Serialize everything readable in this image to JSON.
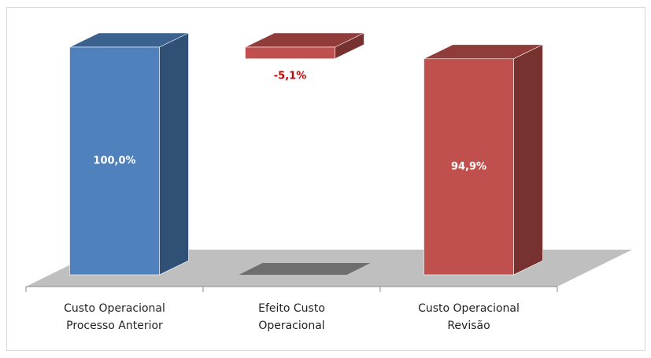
{
  "chart_data": {
    "type": "waterfall",
    "categories": [
      "Custo Operacional Processo Anterior",
      "Efeito Custo Operacional",
      "Custo Operacional Revisão"
    ],
    "values": [
      100,
      -5.1,
      94.9
    ],
    "value_labels": [
      "100,0%",
      "-5,1%",
      "94,9%"
    ],
    "colors": [
      "#4f81bd",
      "#c0504d",
      "#c0504d"
    ]
  }
}
